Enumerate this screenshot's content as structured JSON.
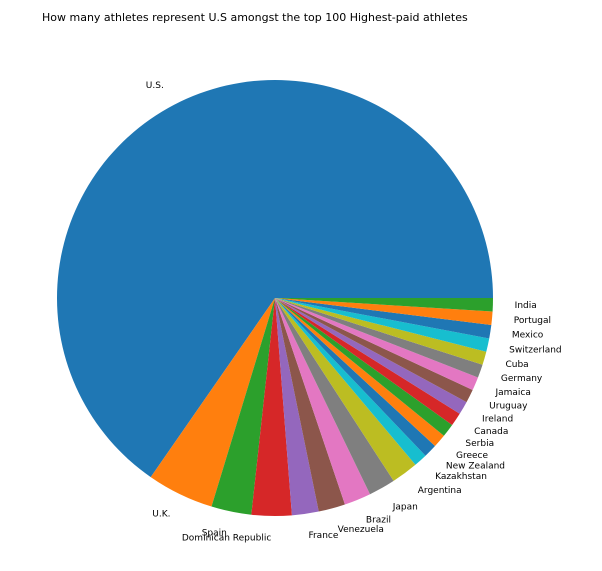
{
  "chart_data": {
    "type": "pie",
    "title": "How many athletes represent U.S amongst the top 100 Highest-paid athletes",
    "start_angle_deg": 0,
    "direction": "counterclockwise",
    "slices": [
      {
        "label": "U.S.",
        "value": 66,
        "color": "#1f77b4"
      },
      {
        "label": "U.K.",
        "value": 5,
        "color": "#ff7f0e"
      },
      {
        "label": "Spain",
        "value": 3,
        "color": "#2ca02c"
      },
      {
        "label": "Dominican Republic",
        "value": 3,
        "color": "#d62728"
      },
      {
        "label": "France",
        "value": 2,
        "color": "#9467bd"
      },
      {
        "label": "Venezuela",
        "value": 2,
        "color": "#8c564b"
      },
      {
        "label": "Brazil",
        "value": 2,
        "color": "#e377c2"
      },
      {
        "label": "Japan",
        "value": 2,
        "color": "#7f7f7f"
      },
      {
        "label": "Argentina",
        "value": 2,
        "color": "#bcbd22"
      },
      {
        "label": "Kazakhstan",
        "value": 1,
        "color": "#17becf"
      },
      {
        "label": "New Zealand",
        "value": 1,
        "color": "#1f77b4"
      },
      {
        "label": "Greece",
        "value": 1,
        "color": "#ff7f0e"
      },
      {
        "label": "Serbia",
        "value": 1,
        "color": "#2ca02c"
      },
      {
        "label": "Canada",
        "value": 1,
        "color": "#d62728"
      },
      {
        "label": "Ireland",
        "value": 1,
        "color": "#9467bd"
      },
      {
        "label": "Uruguay",
        "value": 1,
        "color": "#8c564b"
      },
      {
        "label": "Jamaica",
        "value": 1,
        "color": "#e377c2"
      },
      {
        "label": "Germany",
        "value": 1,
        "color": "#7f7f7f"
      },
      {
        "label": "Cuba",
        "value": 1,
        "color": "#bcbd22"
      },
      {
        "label": "Switzerland",
        "value": 1,
        "color": "#17becf"
      },
      {
        "label": "Mexico",
        "value": 1,
        "color": "#1f77b4"
      },
      {
        "label": "Portugal",
        "value": 1,
        "color": "#ff7f0e"
      },
      {
        "label": "India",
        "value": 1,
        "color": "#2ca02c"
      }
    ]
  }
}
